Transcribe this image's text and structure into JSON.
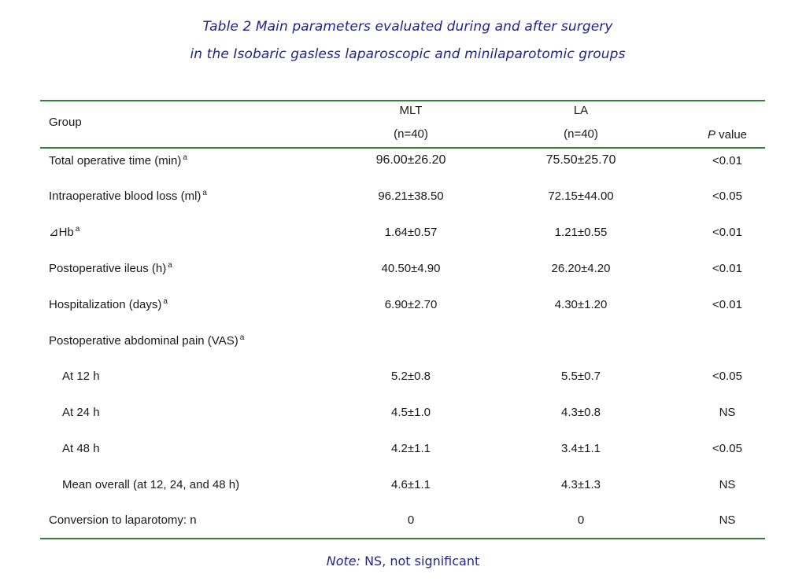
{
  "caption": {
    "line1": "Table 2 Main parameters evaluated during and after surgery",
    "line2": "in the Isobaric gasless laparoscopic and minilaparotomic groups"
  },
  "header": {
    "group_label": "Group",
    "mlt_label": "MLT",
    "mlt_n": "(n=40)",
    "la_label": "LA",
    "la_n": "(n=40)",
    "p_italic": "P",
    "p_rest": " value"
  },
  "rows": [
    {
      "label": "Total operative time (min)",
      "sup": "a",
      "mlt": "96.00±26.20",
      "la": "75.50±25.70",
      "p": "<0.01"
    },
    {
      "label": "Intraoperative blood loss (ml)",
      "sup": "a",
      "mlt": "96.21±38.50",
      "la": "72.15±44.00",
      "p": "<0.05"
    },
    {
      "label": "⊿Hb",
      "sup": "a",
      "mlt": "1.64±0.57",
      "la": "1.21±0.55",
      "p": "<0.01"
    },
    {
      "label": "Postoperative ileus (h)",
      "sup": "a",
      "mlt": "40.50±4.90",
      "la": "26.20±4.20",
      "p": "<0.01"
    },
    {
      "label": "Hospitalization (days)",
      "sup": "a",
      "mlt": "6.90±2.70",
      "la": "4.30±1.20",
      "p": "<0.01"
    },
    {
      "label": "Postoperative abdominal pain (VAS)",
      "sup": "a",
      "mlt": "",
      "la": "",
      "p": ""
    },
    {
      "label": "At 12 h",
      "sup": "",
      "mlt": "5.2±0.8",
      "la": "5.5±0.7",
      "p": "<0.05"
    },
    {
      "label": "At 24 h",
      "sup": "",
      "mlt": "4.5±1.0",
      "la": "4.3±0.8",
      "p": "NS"
    },
    {
      "label": "At 48 h",
      "sup": "",
      "mlt": "4.2±1.1",
      "la": "3.4±1.1",
      "p": "<0.05"
    },
    {
      "label": "Mean overall (at 12, 24, and 48 h)",
      "sup": "",
      "mlt": "4.6±1.1",
      "la": "4.3±1.3",
      "p": "NS"
    },
    {
      "label": "Conversion to laparotomy: n",
      "sup": "",
      "mlt": "0",
      "la": "0",
      "p": "NS"
    }
  ],
  "note": {
    "lead": "Note:",
    "text": " NS, not significant"
  }
}
